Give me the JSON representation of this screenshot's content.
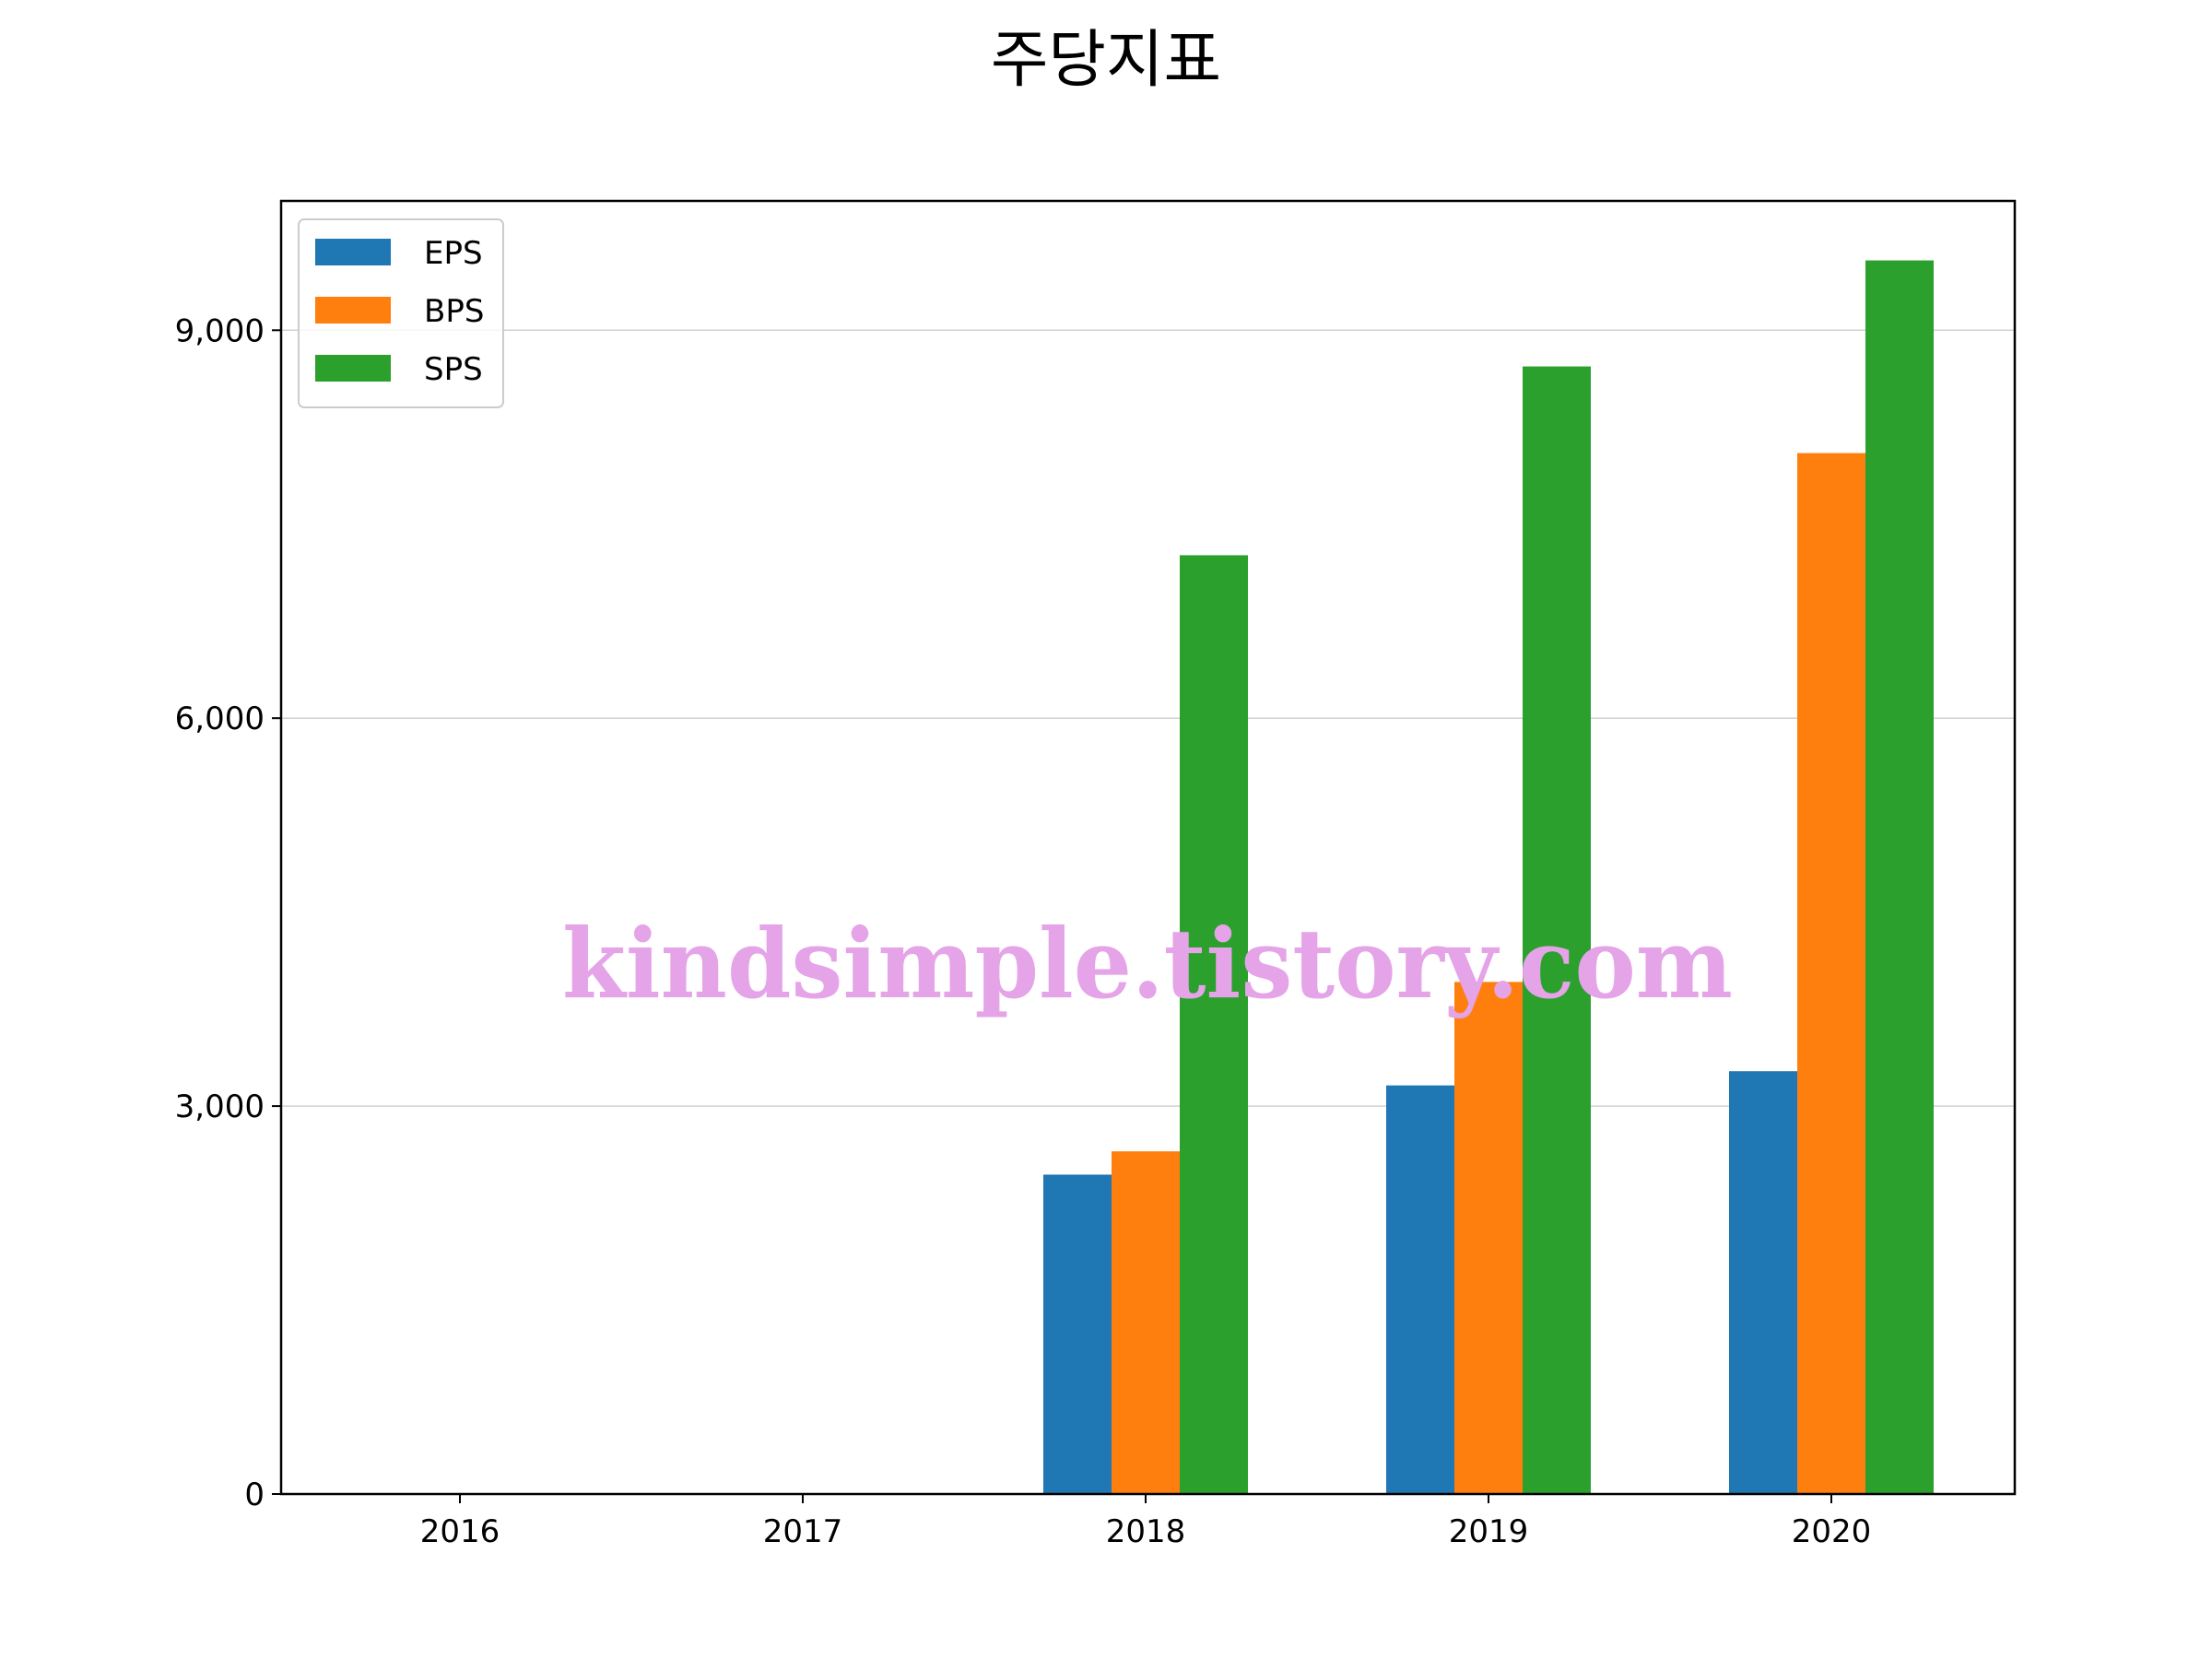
{
  "chart_data": {
    "type": "bar",
    "title": "주당지표",
    "xlabel": "",
    "ylabel": "",
    "categories": [
      "2016",
      "2017",
      "2018",
      "2019",
      "2020"
    ],
    "series": [
      {
        "name": "EPS",
        "color": "#1f77b4",
        "values": [
          0,
          0,
          2470,
          3160,
          3270
        ]
      },
      {
        "name": "BPS",
        "color": "#ff7f0e",
        "values": [
          0,
          0,
          2650,
          3960,
          8050
        ]
      },
      {
        "name": "SPS",
        "color": "#2ca02c",
        "values": [
          0,
          0,
          7260,
          8720,
          9540
        ]
      }
    ],
    "ylim": [
      0,
      10000
    ],
    "yticks": [
      0,
      3000,
      6000,
      9000
    ],
    "ytick_labels": [
      "0",
      "3,000",
      "6,000",
      "9,000"
    ],
    "grid": "horizontal",
    "legend_position": "upper left"
  },
  "watermark": {
    "text": "kindsimple.tistory.com",
    "color": "#e5a3e8"
  }
}
